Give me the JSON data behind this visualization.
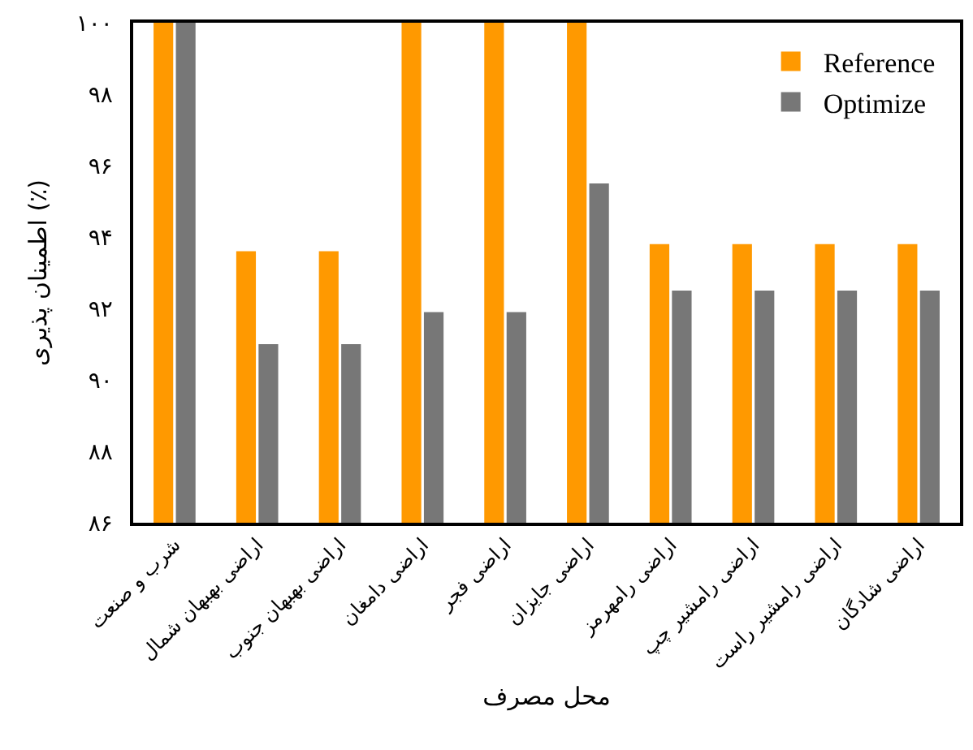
{
  "chart_data": {
    "type": "bar",
    "categories": [
      "شرب و صنعت",
      "اراضی بهبهان شمال",
      "اراضی بهبهان جنوب",
      "اراضی دامغان",
      "اراضی فجر",
      "اراضی جایزان",
      "اراضی رامهرمز",
      "اراضی رامشیر چپ",
      "اراضی رامشیر راست",
      "اراضی شادگان"
    ],
    "series": [
      {
        "name": "Reference",
        "color": "#ff9900",
        "values": [
          100,
          93.6,
          93.6,
          100,
          100,
          100,
          93.8,
          93.8,
          93.8,
          93.8
        ]
      },
      {
        "name": "Optimize",
        "color": "#777777",
        "values": [
          100,
          91.0,
          91.0,
          91.9,
          91.9,
          95.5,
          92.5,
          92.5,
          92.5,
          92.5
        ]
      }
    ],
    "xlabel": "محل مصرف",
    "ylabel": "اطمینان پذیری (٪)",
    "ylim": [
      86,
      100
    ],
    "yticks": [
      {
        "value": 86,
        "label": "۸۶"
      },
      {
        "value": 88,
        "label": "۸۸"
      },
      {
        "value": 90,
        "label": "۹۰"
      },
      {
        "value": 92,
        "label": "۹۲"
      },
      {
        "value": 94,
        "label": "۹۴"
      },
      {
        "value": 96,
        "label": "۹۶"
      },
      {
        "value": 98,
        "label": "۹۸"
      },
      {
        "value": 100,
        "label": "۱۰۰"
      }
    ],
    "grid": false,
    "legend": "top right"
  }
}
